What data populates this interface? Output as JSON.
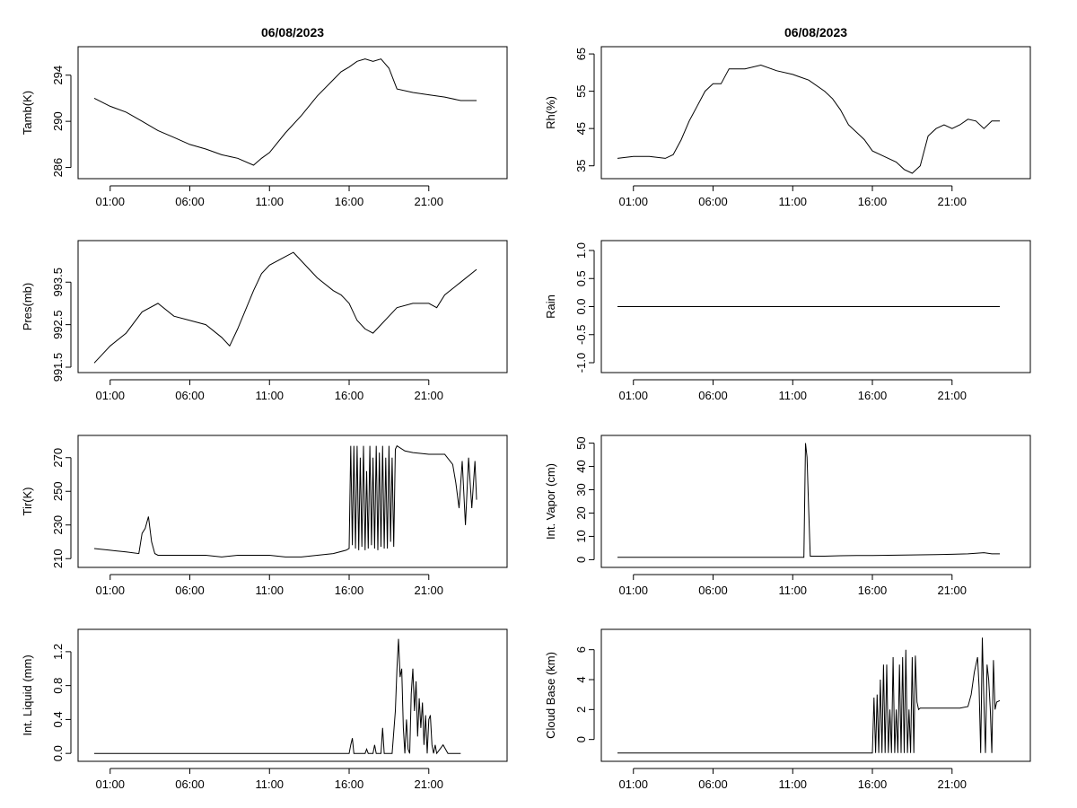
{
  "figure": {
    "background": "#ffffff",
    "line_color": "#000000"
  },
  "chart_data": [
    {
      "type": "line",
      "title": "06/08/2023",
      "xlabel": "",
      "ylabel": "Tamb(K)",
      "xticks": [
        "01:00",
        "06:00",
        "11:00",
        "16:00",
        "21:00"
      ],
      "xlim": [
        0,
        24.9
      ],
      "yticks": [
        "286",
        "290",
        "294"
      ],
      "ylim": [
        285.5,
        296
      ],
      "series": [
        {
          "name": "Tamb",
          "x": [
            0,
            1,
            2,
            3,
            4,
            5,
            6,
            7,
            8,
            9,
            10,
            10.5,
            11,
            12,
            13,
            14,
            15,
            15.5,
            16,
            16.5,
            17,
            17.5,
            18,
            18.5,
            19,
            20,
            21,
            22,
            23,
            24
          ],
          "y": [
            292.0,
            291.3,
            290.8,
            290.0,
            289.2,
            288.6,
            288.0,
            287.6,
            287.1,
            286.8,
            286.2,
            286.8,
            287.3,
            289.0,
            290.5,
            292.2,
            293.6,
            294.3,
            294.7,
            295.2,
            295.4,
            295.2,
            295.4,
            294.6,
            292.8,
            292.5,
            292.3,
            292.1,
            291.8,
            291.8
          ]
        }
      ]
    },
    {
      "type": "line",
      "title": "06/08/2023",
      "xlabel": "",
      "ylabel": "Rh(%)",
      "xticks": [
        "01:00",
        "06:00",
        "11:00",
        "16:00",
        "21:00"
      ],
      "xlim": [
        0,
        24.9
      ],
      "yticks": [
        "35",
        "45",
        "55",
        "65"
      ],
      "ylim": [
        33,
        65.5
      ],
      "series": [
        {
          "name": "Rh",
          "x": [
            0,
            1,
            2,
            3,
            3.5,
            4,
            4.5,
            5,
            5.5,
            6,
            6.5,
            7,
            8,
            9,
            10,
            11,
            12,
            13,
            13.5,
            14,
            14.5,
            15,
            15.5,
            16,
            17,
            17.5,
            18,
            18.5,
            19,
            19.5,
            20,
            20.5,
            21,
            21.5,
            22,
            22.5,
            23,
            23.5,
            24
          ],
          "y": [
            37,
            37.5,
            37.5,
            37,
            38,
            42,
            47,
            51,
            55,
            57,
            57,
            61,
            61,
            62,
            60.5,
            59.5,
            58,
            55,
            53,
            50,
            46,
            44,
            42,
            39,
            37,
            36,
            34,
            33,
            35,
            43,
            45,
            46,
            45,
            46,
            47.5,
            47,
            45,
            47,
            47
          ]
        }
      ]
    },
    {
      "type": "line",
      "title": "",
      "xlabel": "",
      "ylabel": "Pres(mb)",
      "xticks": [
        "01:00",
        "06:00",
        "11:00",
        "16:00",
        "21:00"
      ],
      "xlim": [
        0,
        24.9
      ],
      "yticks": [
        "991.5",
        "992.5",
        "993.5"
      ],
      "ylim": [
        991.5,
        994.35
      ],
      "series": [
        {
          "name": "Pres",
          "x": [
            0,
            0.5,
            1,
            2,
            3,
            4,
            5,
            6,
            7,
            8,
            8.5,
            9,
            10,
            10.5,
            11,
            12,
            12.5,
            13,
            14,
            15,
            15.5,
            16,
            16.5,
            17,
            17.5,
            18,
            18.5,
            19,
            20,
            21,
            21.5,
            22,
            23,
            24
          ],
          "y": [
            991.6,
            991.8,
            992.0,
            992.3,
            992.8,
            993.0,
            992.7,
            992.6,
            992.5,
            992.2,
            992.0,
            992.4,
            993.3,
            993.7,
            993.9,
            994.1,
            994.2,
            994.0,
            993.6,
            993.3,
            993.2,
            993.0,
            992.6,
            992.4,
            992.3,
            992.5,
            992.7,
            992.9,
            993.0,
            993.0,
            992.9,
            993.2,
            993.5,
            993.8
          ]
        }
      ]
    },
    {
      "type": "line",
      "title": "",
      "xlabel": "",
      "ylabel": "Rain",
      "xticks": [
        "01:00",
        "06:00",
        "11:00",
        "16:00",
        "21:00"
      ],
      "xlim": [
        0,
        24.9
      ],
      "yticks": [
        "-1.0",
        "-0.5",
        "0.0",
        "0.5",
        "1.0"
      ],
      "ylim": [
        -1.08,
        1.08
      ],
      "series": [
        {
          "name": "Rain",
          "x": [
            0,
            24
          ],
          "y": [
            0,
            0
          ]
        }
      ]
    },
    {
      "type": "line",
      "title": "",
      "xlabel": "",
      "ylabel": "Tir(K)",
      "xticks": [
        "01:00",
        "06:00",
        "11:00",
        "16:00",
        "21:00"
      ],
      "xlim": [
        0,
        24.9
      ],
      "yticks": [
        "210",
        "230",
        "250",
        "270"
      ],
      "ylim": [
        208,
        280
      ],
      "series": [
        {
          "name": "Tir",
          "x": [
            0,
            1,
            2,
            2.8,
            3.0,
            3.2,
            3.4,
            3.6,
            3.8,
            4,
            5,
            6,
            7,
            8,
            9,
            10,
            11,
            12,
            13,
            14,
            15,
            15.8,
            16,
            16.1,
            16.2,
            16.3,
            16.4,
            16.5,
            16.6,
            16.7,
            16.8,
            16.9,
            17,
            17.1,
            17.2,
            17.3,
            17.4,
            17.5,
            17.6,
            17.7,
            17.8,
            17.9,
            18,
            18.1,
            18.2,
            18.3,
            18.4,
            18.5,
            18.6,
            18.7,
            18.8,
            18.9,
            19,
            19.5,
            20,
            21,
            22,
            22.5,
            22.7,
            22.9,
            23.1,
            23.3,
            23.5,
            23.7,
            23.9,
            24
          ],
          "y": [
            216,
            215,
            214,
            213,
            225,
            228,
            235,
            220,
            213,
            212,
            212,
            212,
            212,
            211,
            212,
            212,
            212,
            211,
            211,
            212,
            213,
            215,
            216,
            277,
            218,
            277,
            216,
            277,
            215,
            270,
            217,
            277,
            215,
            262,
            216,
            277,
            218,
            270,
            216,
            277,
            215,
            273,
            217,
            277,
            216,
            270,
            216,
            277,
            220,
            270,
            217,
            275,
            277,
            274,
            273,
            272,
            272,
            266,
            255,
            240,
            268,
            230,
            270,
            240,
            268,
            245
          ]
        }
      ]
    },
    {
      "type": "line",
      "title": "",
      "xlabel": "",
      "ylabel": "Int. Vapor (cm)",
      "xticks": [
        "01:00",
        "06:00",
        "11:00",
        "16:00",
        "21:00"
      ],
      "xlim": [
        0,
        24.9
      ],
      "yticks": [
        "0",
        "10",
        "20",
        "30",
        "40",
        "50"
      ],
      "ylim": [
        -1,
        51
      ],
      "series": [
        {
          "name": "Int. Vapor",
          "x": [
            0,
            6,
            10,
            11.5,
            11.7,
            11.8,
            11.9,
            12.0,
            12.1,
            12.3,
            13,
            14,
            15,
            16,
            17,
            18,
            19,
            20,
            21,
            22,
            23,
            23.5,
            24
          ],
          "y": [
            1,
            1,
            1,
            1,
            1,
            50,
            44,
            22,
            1.5,
            1.5,
            1.5,
            1.7,
            1.8,
            1.8,
            1.9,
            2.0,
            2.1,
            2.2,
            2.3,
            2.5,
            3.0,
            2.5,
            2.5
          ]
        }
      ]
    },
    {
      "type": "line",
      "title": "",
      "xlabel": "",
      "ylabel": "Int. Liquid (mm)",
      "xticks": [
        "01:00",
        "06:00",
        "11:00",
        "16:00",
        "21:00"
      ],
      "xlim": [
        0,
        24.9
      ],
      "yticks": [
        "0.0",
        "0.4",
        "0.8",
        "1.2"
      ],
      "ylim": [
        -0.03,
        1.4
      ],
      "series": [
        {
          "name": "Int. Liquid",
          "x": [
            0,
            16,
            16.1,
            16.2,
            16.3,
            16.4,
            17,
            17.1,
            17.2,
            17.5,
            17.6,
            17.7,
            18.0,
            18.1,
            18.2,
            18.7,
            18.9,
            19.0,
            19.1,
            19.2,
            19.3,
            19.4,
            19.5,
            19.6,
            19.7,
            19.8,
            19.9,
            20.0,
            20.1,
            20.2,
            20.3,
            20.4,
            20.5,
            20.6,
            20.7,
            20.8,
            20.9,
            21.0,
            21.1,
            21.2,
            21.3,
            21.4,
            21.5,
            21.7,
            21.9,
            22.2,
            23
          ],
          "y": [
            0,
            0,
            0.1,
            0.18,
            0,
            0,
            0,
            0.05,
            0,
            0,
            0.1,
            0,
            0,
            0.3,
            0,
            0,
            0.5,
            1.0,
            1.35,
            0.9,
            1.0,
            0.3,
            0,
            0.4,
            0.05,
            0,
            0.7,
            1.0,
            0.5,
            0.85,
            0.2,
            0.65,
            0.3,
            0.6,
            0.1,
            0.45,
            0,
            0.4,
            0.45,
            0.1,
            0,
            0.1,
            0,
            0.05,
            0.1,
            0,
            0
          ]
        }
      ]
    },
    {
      "type": "line",
      "title": "",
      "xlabel": "",
      "ylabel": "Cloud Base (km)",
      "xticks": [
        "01:00",
        "06:00",
        "11:00",
        "16:00",
        "21:00"
      ],
      "xlim": [
        0,
        24.9
      ],
      "yticks": [
        "0",
        "2",
        "4",
        "6"
      ],
      "ylim": [
        -1.1,
        7.0
      ],
      "series": [
        {
          "name": "Cloud Base",
          "x": [
            0,
            16,
            16.1,
            16.2,
            16.3,
            16.4,
            16.5,
            16.6,
            16.7,
            16.8,
            16.9,
            17,
            17.1,
            17.2,
            17.3,
            17.4,
            17.5,
            17.6,
            17.7,
            17.8,
            17.9,
            18,
            18.1,
            18.2,
            18.3,
            18.4,
            18.5,
            18.6,
            18.7,
            18.8,
            18.9,
            19,
            20,
            21,
            21.5,
            22,
            22.2,
            22.4,
            22.6,
            22.7,
            22.8,
            22.9,
            23.0,
            23.1,
            23.2,
            23.3,
            23.4,
            23.5,
            23.6,
            23.7,
            23.8,
            24
          ],
          "y": [
            -0.9,
            -0.9,
            2.8,
            -0.9,
            3.0,
            -0.9,
            4.0,
            -0.9,
            5.0,
            -0.9,
            5.0,
            -0.9,
            2.0,
            -0.9,
            5.5,
            -0.9,
            2.0,
            -0.9,
            5.0,
            -0.9,
            5.5,
            -0.9,
            6.0,
            -0.9,
            2.0,
            -0.9,
            5.5,
            -0.9,
            5.6,
            2.5,
            2.0,
            2.1,
            2.1,
            2.1,
            2.1,
            2.2,
            3.0,
            4.5,
            5.5,
            3.5,
            -0.9,
            6.8,
            2.5,
            -0.9,
            5.0,
            4.0,
            2.0,
            -0.9,
            5.3,
            2.0,
            2.5,
            2.6
          ]
        }
      ]
    }
  ]
}
